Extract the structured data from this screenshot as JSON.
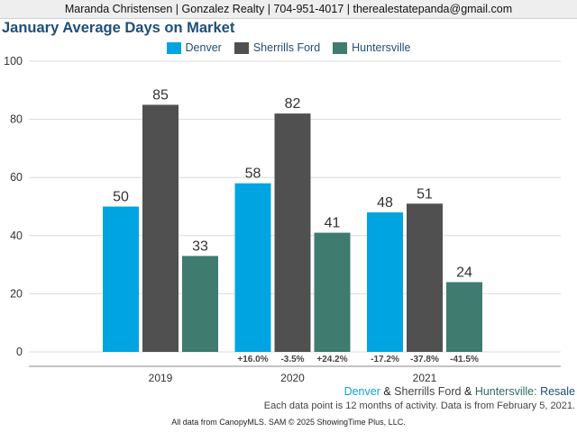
{
  "header": {
    "contact": "Maranda Christensen | Gonzalez Realty | 704-951-4017 | therealestatepanda@gmail.com"
  },
  "chart_data": {
    "type": "bar",
    "title": "January Average Days on Market",
    "categories": [
      "2019",
      "2020",
      "2021"
    ],
    "series": [
      {
        "name": "Denver",
        "color": "#00a4e0",
        "values": [
          50,
          58,
          48
        ],
        "changes": [
          "",
          "+16.0%",
          "-17.2%"
        ]
      },
      {
        "name": "Sherrills Ford",
        "color": "#505050",
        "values": [
          85,
          82,
          51
        ],
        "changes": [
          "",
          "-3.5%",
          "-37.8%"
        ]
      },
      {
        "name": "Huntersville",
        "color": "#3f7b6f",
        "values": [
          33,
          41,
          24
        ],
        "changes": [
          "",
          "+24.2%",
          "-41.5%"
        ]
      }
    ],
    "ylim": [
      0,
      100
    ],
    "yticks": [
      0,
      20,
      40,
      60,
      80,
      100
    ],
    "grid": true,
    "legend_position": "top-center"
  },
  "footer": {
    "denver": "Denver",
    "amp1": "&",
    "sherrills": "Sherrills Ford",
    "amp2": "&",
    "huntersville": "Huntersville:",
    "resale": "Resale",
    "note": "Each data point is 12 months of activity. Data is from February 5, 2021.",
    "credits": "All data from CanopyMLS. SAM © 2025 ShowingTime Plus, LLC."
  }
}
